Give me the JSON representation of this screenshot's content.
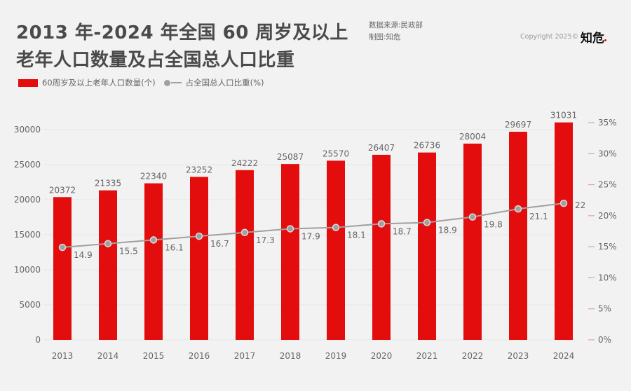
{
  "header": {
    "title_line1": "2013 年-2024 年全国 60 周岁及以上",
    "title_line2": "老年人口数量及占全国总人口比重",
    "source": "数据来源:民政部",
    "author": "制图:知危",
    "copyright": "Copyright 2025©",
    "brand": "知危"
  },
  "colors": {
    "bar": "#e30d0d",
    "line": "#a0a0a0",
    "right_tick": "#e8a0a0"
  },
  "chart_data": {
    "type": "bar+line",
    "title": "2013 年-2024 年全国 60 周岁及以上老年人口数量及占全国总人口比重",
    "categories": [
      "2013",
      "2014",
      "2015",
      "2016",
      "2017",
      "2018",
      "2019",
      "2020",
      "2021",
      "2022",
      "2023",
      "2024"
    ],
    "series": [
      {
        "name": "60周岁及以上老年人口数量(个)",
        "type": "bar",
        "axis": "left",
        "values": [
          20372,
          21335,
          22340,
          23252,
          24222,
          25087,
          25570,
          26407,
          26736,
          28004,
          29697,
          31031
        ]
      },
      {
        "name": "占全国总人口比重(%)",
        "type": "line",
        "axis": "right",
        "values": [
          14.9,
          15.5,
          16.1,
          16.7,
          17.3,
          17.9,
          18.1,
          18.7,
          18.9,
          19.8,
          21.1,
          22
        ]
      }
    ],
    "left_axis": {
      "ylim": [
        0,
        30000
      ],
      "ticks": [
        "0",
        "5000",
        "10000",
        "15000",
        "20000",
        "25000",
        "30000"
      ]
    },
    "right_axis": {
      "ylim": [
        0,
        35
      ],
      "ticks": [
        "0%",
        "5%",
        "10%",
        "15%",
        "20%",
        "25%",
        "30%",
        "35%"
      ]
    },
    "legend_position": "top-left",
    "grid": true
  }
}
